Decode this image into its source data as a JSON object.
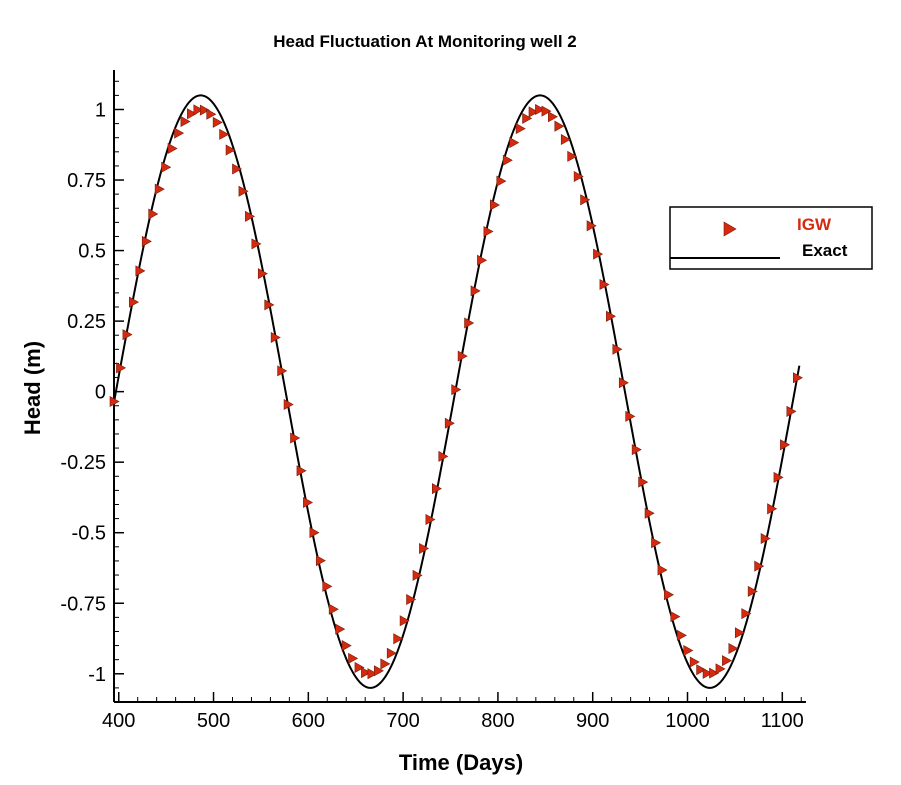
{
  "chart_data": {
    "type": "scatter",
    "title": "Head Fluctuation At Monitoring well 2",
    "xlabel": "Time (Days)",
    "ylabel": "Head (m)",
    "xlim": [
      395,
      1125
    ],
    "ylim": [
      -1.1,
      1.14
    ],
    "xticks": [
      400,
      500,
      600,
      700,
      800,
      900,
      1000,
      1100
    ],
    "xtick_labels": [
      "400",
      "500",
      "600",
      "700",
      "800",
      "900",
      "1000",
      "1100"
    ],
    "yticks": [
      1,
      0.75,
      0.5,
      0.25,
      0,
      -0.25,
      -0.5,
      -0.75,
      -1
    ],
    "ytick_labels": [
      "1",
      "0.75",
      "0.5",
      "0.25",
      "0",
      "-0.25",
      "-0.5",
      "-0.75",
      "-1"
    ],
    "grid": false,
    "legend_position": "right",
    "series": [
      {
        "name": "IGW",
        "marker": "triangle-right",
        "color": "#d42a10",
        "x_start": 395,
        "x_step": 6.8,
        "x_end": 1120,
        "amplitude": 1.0,
        "period_days": 358,
        "phase_origin": 397
      },
      {
        "name": "Exact",
        "style": "line",
        "color": "#000000",
        "x_start": 395,
        "x_end": 1118,
        "amplitude": 1.05,
        "period_days": 358,
        "phase_origin": 397
      }
    ]
  }
}
